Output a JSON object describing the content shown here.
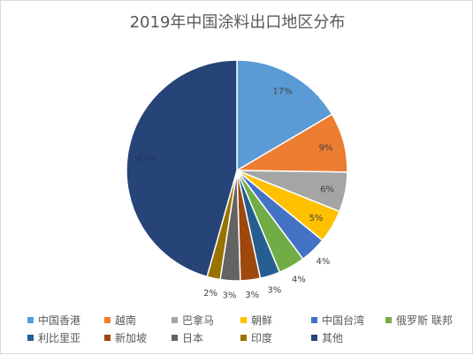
{
  "chart_data": {
    "type": "pie",
    "title": "2019年中国涂料出口地区分布",
    "slices": [
      {
        "label": "中国香港",
        "value": 17,
        "display": "17%",
        "color": "#5B9BD5"
      },
      {
        "label": "越南",
        "value": 9,
        "display": "9%",
        "color": "#ED7D31"
      },
      {
        "label": "巴拿马",
        "value": 6,
        "display": "6%",
        "color": "#A5A5A5"
      },
      {
        "label": "朝鲜",
        "value": 5,
        "display": "5%",
        "color": "#FFC000"
      },
      {
        "label": "中国台湾",
        "value": 4,
        "display": "4%",
        "color": "#4472C4"
      },
      {
        "label": "俄罗斯 联邦",
        "value": 4,
        "display": "4%",
        "color": "#70AD47"
      },
      {
        "label": "利比里亚",
        "value": 3,
        "display": "3%",
        "color": "#255E91"
      },
      {
        "label": "新加坡",
        "value": 3,
        "display": "3%",
        "color": "#9E480E"
      },
      {
        "label": "日本",
        "value": 3,
        "display": "3%",
        "color": "#636363"
      },
      {
        "label": "印度",
        "value": 2,
        "display": "2%",
        "color": "#997300"
      },
      {
        "label": "其他",
        "value": 47,
        "display": "47%",
        "color": "#264478"
      }
    ],
    "legend_position": "bottom"
  }
}
